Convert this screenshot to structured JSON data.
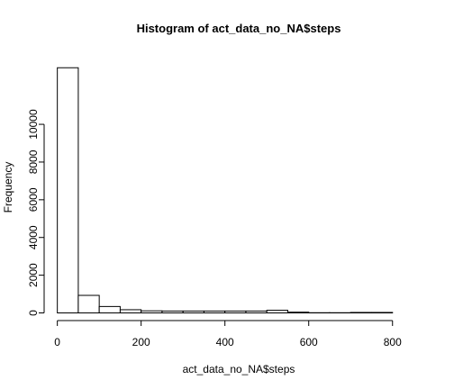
{
  "chart_data": {
    "type": "bar",
    "title": "Histogram of act_data_no_NA$steps",
    "xlabel": "act_data_no_NA$steps",
    "ylabel": "Frequency",
    "bin_width": 50,
    "x_ticks": [
      0,
      200,
      400,
      600,
      800
    ],
    "y_ticks": [
      0,
      2000,
      4000,
      6000,
      8000,
      10000
    ],
    "xlim": [
      -10,
      850
    ],
    "ylim": [
      0,
      13250
    ],
    "bins": [
      {
        "x0": 0,
        "x1": 50,
        "count": 13000
      },
      {
        "x0": 50,
        "x1": 100,
        "count": 930
      },
      {
        "x0": 100,
        "x1": 150,
        "count": 340
      },
      {
        "x0": 150,
        "x1": 200,
        "count": 170
      },
      {
        "x0": 200,
        "x1": 250,
        "count": 110
      },
      {
        "x0": 250,
        "x1": 300,
        "count": 100
      },
      {
        "x0": 300,
        "x1": 350,
        "count": 100
      },
      {
        "x0": 350,
        "x1": 400,
        "count": 100
      },
      {
        "x0": 400,
        "x1": 450,
        "count": 100
      },
      {
        "x0": 450,
        "x1": 500,
        "count": 100
      },
      {
        "x0": 500,
        "x1": 550,
        "count": 140
      },
      {
        "x0": 550,
        "x1": 600,
        "count": 40
      },
      {
        "x0": 600,
        "x1": 650,
        "count": 10
      },
      {
        "x0": 650,
        "x1": 700,
        "count": 10
      },
      {
        "x0": 700,
        "x1": 750,
        "count": 25
      },
      {
        "x0": 750,
        "x1": 800,
        "count": 25
      }
    ]
  }
}
